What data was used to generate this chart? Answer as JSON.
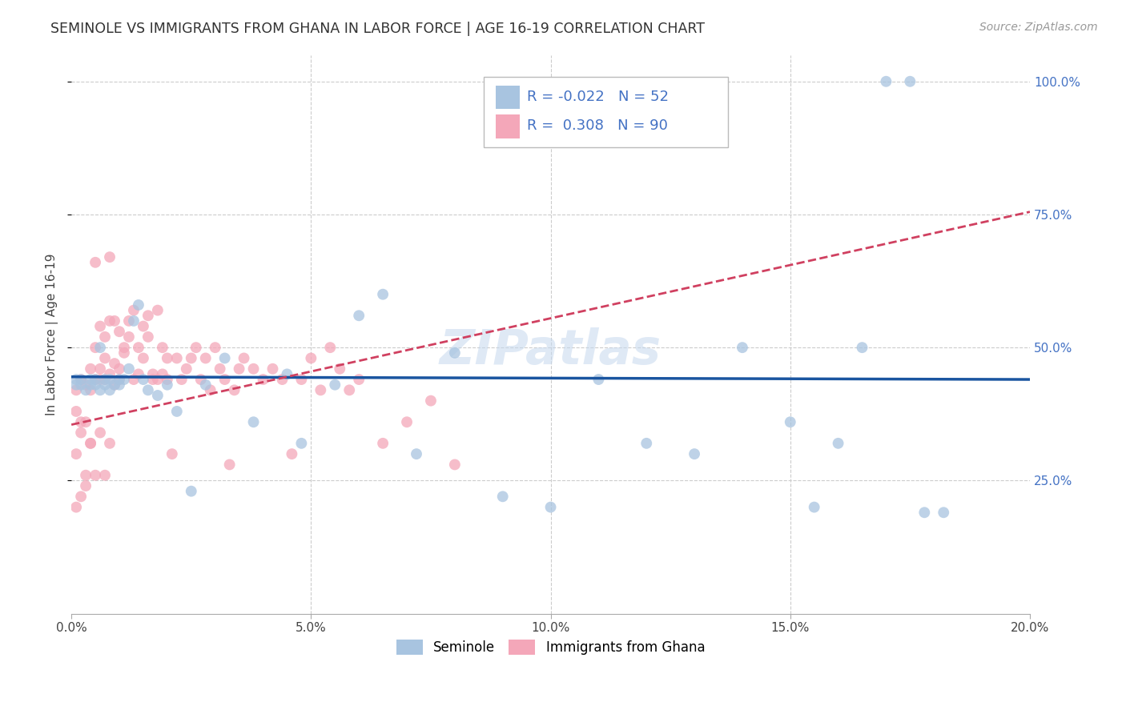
{
  "title": "SEMINOLE VS IMMIGRANTS FROM GHANA IN LABOR FORCE | AGE 16-19 CORRELATION CHART",
  "source": "Source: ZipAtlas.com",
  "ylabel": "In Labor Force | Age 16-19",
  "xlim": [
    0.0,
    0.2
  ],
  "ylim": [
    0.0,
    1.05
  ],
  "xtick_vals": [
    0.0,
    0.05,
    0.1,
    0.15,
    0.2
  ],
  "xtick_labels": [
    "0.0%",
    "5.0%",
    "10.0%",
    "15.0%",
    "20.0%"
  ],
  "ytick_vals": [
    0.25,
    0.5,
    0.75,
    1.0
  ],
  "ytick_labels": [
    "25.0%",
    "50.0%",
    "75.0%",
    "100.0%"
  ],
  "seminole_R": "-0.022",
  "seminole_N": "52",
  "ghana_R": "0.308",
  "ghana_N": "90",
  "seminole_color": "#a8c4e0",
  "ghana_color": "#f4a7b9",
  "trend_seminole_color": "#1a55a0",
  "trend_ghana_color": "#d04060",
  "watermark": "ZIPatlas",
  "legend_box_color": "#cccccc",
  "seminole_x": [
    0.001,
    0.001,
    0.002,
    0.002,
    0.003,
    0.004,
    0.004,
    0.005,
    0.005,
    0.006,
    0.006,
    0.007,
    0.007,
    0.008,
    0.008,
    0.009,
    0.01,
    0.01,
    0.011,
    0.012,
    0.013,
    0.014,
    0.015,
    0.016,
    0.018,
    0.02,
    0.022,
    0.025,
    0.028,
    0.032,
    0.038,
    0.045,
    0.048,
    0.055,
    0.06,
    0.065,
    0.072,
    0.08,
    0.09,
    0.1,
    0.11,
    0.12,
    0.13,
    0.14,
    0.15,
    0.155,
    0.16,
    0.165,
    0.17,
    0.175,
    0.178,
    0.182
  ],
  "seminole_y": [
    0.44,
    0.43,
    0.44,
    0.43,
    0.42,
    0.44,
    0.43,
    0.44,
    0.43,
    0.42,
    0.5,
    0.44,
    0.43,
    0.42,
    0.44,
    0.43,
    0.43,
    0.44,
    0.44,
    0.46,
    0.55,
    0.58,
    0.44,
    0.42,
    0.41,
    0.43,
    0.38,
    0.23,
    0.43,
    0.48,
    0.36,
    0.45,
    0.32,
    0.43,
    0.56,
    0.6,
    0.3,
    0.49,
    0.22,
    0.2,
    0.44,
    0.32,
    0.3,
    0.5,
    0.36,
    0.2,
    0.32,
    0.5,
    1.0,
    1.0,
    0.19,
    0.19
  ],
  "ghana_x": [
    0.001,
    0.001,
    0.001,
    0.002,
    0.002,
    0.002,
    0.003,
    0.003,
    0.003,
    0.004,
    0.004,
    0.004,
    0.005,
    0.005,
    0.005,
    0.006,
    0.006,
    0.006,
    0.007,
    0.007,
    0.007,
    0.008,
    0.008,
    0.008,
    0.009,
    0.009,
    0.009,
    0.01,
    0.01,
    0.01,
    0.011,
    0.011,
    0.012,
    0.012,
    0.013,
    0.013,
    0.014,
    0.014,
    0.015,
    0.015,
    0.016,
    0.016,
    0.017,
    0.017,
    0.018,
    0.018,
    0.019,
    0.019,
    0.02,
    0.02,
    0.021,
    0.022,
    0.023,
    0.024,
    0.025,
    0.026,
    0.027,
    0.028,
    0.029,
    0.03,
    0.031,
    0.032,
    0.033,
    0.034,
    0.035,
    0.036,
    0.038,
    0.04,
    0.042,
    0.044,
    0.046,
    0.048,
    0.05,
    0.052,
    0.054,
    0.056,
    0.058,
    0.06,
    0.065,
    0.07,
    0.075,
    0.08,
    0.001,
    0.002,
    0.003,
    0.004,
    0.005,
    0.006,
    0.007,
    0.008
  ],
  "ghana_y": [
    0.42,
    0.3,
    0.38,
    0.34,
    0.44,
    0.36,
    0.43,
    0.26,
    0.36,
    0.42,
    0.46,
    0.32,
    0.44,
    0.5,
    0.66,
    0.46,
    0.44,
    0.54,
    0.52,
    0.48,
    0.44,
    0.55,
    0.45,
    0.67,
    0.47,
    0.43,
    0.55,
    0.44,
    0.46,
    0.53,
    0.49,
    0.5,
    0.55,
    0.52,
    0.57,
    0.44,
    0.45,
    0.5,
    0.48,
    0.54,
    0.52,
    0.56,
    0.44,
    0.45,
    0.57,
    0.44,
    0.45,
    0.5,
    0.48,
    0.44,
    0.3,
    0.48,
    0.44,
    0.46,
    0.48,
    0.5,
    0.44,
    0.48,
    0.42,
    0.5,
    0.46,
    0.44,
    0.28,
    0.42,
    0.46,
    0.48,
    0.46,
    0.44,
    0.46,
    0.44,
    0.3,
    0.44,
    0.48,
    0.42,
    0.5,
    0.46,
    0.42,
    0.44,
    0.32,
    0.36,
    0.4,
    0.28,
    0.2,
    0.22,
    0.24,
    0.32,
    0.26,
    0.34,
    0.26,
    0.32
  ],
  "seminole_trend_y0": 0.445,
  "seminole_trend_y1": 0.44,
  "ghana_trend_y0": 0.355,
  "ghana_trend_y1": 0.755
}
